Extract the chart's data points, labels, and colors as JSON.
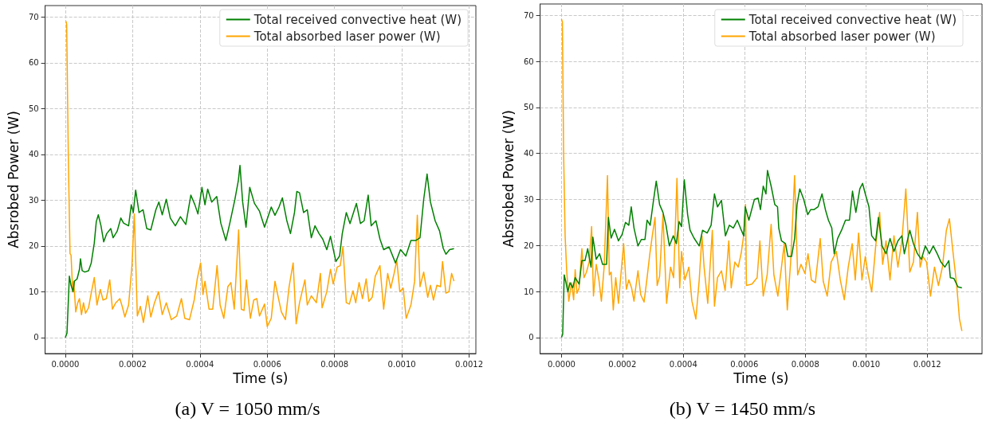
{
  "chart_data": [
    {
      "type": "line",
      "xlabel": "Time (s)",
      "ylabel": "Absrobed Power (W)",
      "annotations": [
        "(a) V = 1050 mm/s"
      ],
      "xlim": [
        -6e-05,
        0.00122
      ],
      "ylim": [
        -3.5,
        72.5
      ],
      "xticks": [
        {
          "value": 0,
          "label": "0.0000"
        },
        {
          "value": 0.0002,
          "label": "0.0002"
        },
        {
          "value": 0.0004,
          "label": "0.0004"
        },
        {
          "value": 0.0006,
          "label": "0.0006"
        },
        {
          "value": 0.0008,
          "label": "0.0008"
        },
        {
          "value": 0.001,
          "label": "0.0010"
        },
        {
          "value": 0.0012,
          "label": "0.0012"
        }
      ],
      "yticks": [
        0,
        10,
        20,
        30,
        40,
        50,
        60,
        70
      ],
      "grid": true,
      "legend": "top right",
      "line_style": "solid",
      "series": [
        {
          "name": "Total received convective heat (W)",
          "color": "#008000",
          "x": [
            0,
            5e-06,
            1.2e-05,
            1.7e-05,
            2.3e-05,
            2.7e-05,
            3.5e-05,
            4.2e-05,
            4.5e-05,
            5e-05,
            5.8e-05,
            6.9e-05,
            7.7e-05,
            8.6e-05,
            9.2e-05,
            9.8e-05,
            0.000106,
            0.000114,
            0.000123,
            0.000135,
            0.000142,
            0.000154,
            0.000165,
            0.000173,
            0.000188,
            0.000196,
            0.000202,
            0.000209,
            0.000219,
            0.000231,
            0.000242,
            0.000254,
            0.000269,
            0.000278,
            0.000288,
            0.0003,
            0.000312,
            0.000327,
            0.000342,
            0.000358,
            0.000373,
            0.000385,
            0.000394,
            0.000406,
            0.000415,
            0.000423,
            0.000435,
            0.00045,
            0.000462,
            0.000477,
            0.000488,
            0.000504,
            0.000514,
            0.000519,
            0.000527,
            0.000537,
            0.000548,
            0.000562,
            0.000577,
            0.000592,
            0.000612,
            0.000623,
            0.000635,
            0.000645,
            0.000658,
            0.000669,
            0.000681,
            0.000688,
            0.000696,
            0.000708,
            0.000719,
            0.000731,
            0.000742,
            0.000754,
            0.000765,
            0.000777,
            0.000788,
            0.000804,
            0.000815,
            0.000823,
            0.000835,
            0.000846,
            0.000865,
            0.000877,
            0.000888,
            0.0009,
            0.000909,
            0.000923,
            0.000935,
            0.000946,
            0.000962,
            0.000981,
            0.000996,
            0.001012,
            0.001027,
            0.001042,
            0.001054,
            0.001065,
            0.001075,
            0.001085,
            0.001099,
            0.001112,
            0.001123,
            0.001131,
            0.001142,
            0.001155
          ],
          "values": [
            0,
            1,
            13.4,
            11.4,
            10,
            12.3,
            12.8,
            14.9,
            17.2,
            14.6,
            14.3,
            14.6,
            16.3,
            20.6,
            25.3,
            26.8,
            24.4,
            20.9,
            22.7,
            23.8,
            21.8,
            23.2,
            26.1,
            25,
            24.4,
            29,
            27.3,
            32.2,
            27.3,
            27.9,
            23.8,
            23.5,
            27.9,
            29.6,
            26.8,
            30.2,
            26.1,
            24.4,
            26.4,
            24.7,
            31.1,
            29,
            27,
            32.8,
            29,
            32.4,
            29.6,
            30.8,
            25,
            21.2,
            24.7,
            30.2,
            34.2,
            37.6,
            29.6,
            24.1,
            32.8,
            29.3,
            27.6,
            24.1,
            28.5,
            26.7,
            28.5,
            30.5,
            25.6,
            22.7,
            27.3,
            31.9,
            31.6,
            27.3,
            27.9,
            21.8,
            24.4,
            22.7,
            21.5,
            19.2,
            22.1,
            16.6,
            17.8,
            22.7,
            27.3,
            24.9,
            29.3,
            24.9,
            25.5,
            31.1,
            24.4,
            25.5,
            21.5,
            19.2,
            19.8,
            16.3,
            19.2,
            17.8,
            21.2,
            21.2,
            21.8,
            30.2,
            35.7,
            29.6,
            25.5,
            23.3,
            19.5,
            18.2,
            19.2,
            19.4
          ]
        },
        {
          "name": "Total absorbed laser power (W)",
          "color": "#ffa500",
          "x": [
            2e-06,
            4e-06,
            9e-06,
            1.4e-05,
            1.7e-05,
            2.2e-05,
            2.5e-05,
            3.1e-05,
            3.7e-05,
            4.2e-05,
            4.8e-05,
            5.4e-05,
            6e-05,
            6.9e-05,
            7.7e-05,
            8.6e-05,
            9.4e-05,
            0.000104,
            0.000112,
            0.000122,
            0.000132,
            0.00014,
            0.00015,
            0.000162,
            0.000169,
            0.000177,
            0.000188,
            0.000198,
            0.000205,
            0.000214,
            0.000223,
            0.000232,
            0.000245,
            0.000254,
            0.000265,
            0.000277,
            0.000288,
            0.0003,
            0.000315,
            0.000331,
            0.000345,
            0.000355,
            0.000369,
            0.000383,
            0.000392,
            0.000402,
            0.000409,
            0.000415,
            0.000427,
            0.000438,
            0.000451,
            0.00046,
            0.000471,
            0.000483,
            0.000492,
            0.000502,
            0.000515,
            0.000523,
            0.000531,
            0.000538,
            0.00055,
            0.00056,
            0.000569,
            0.000577,
            0.000592,
            0.0006,
            0.000612,
            0.000623,
            0.000631,
            0.000642,
            0.000654,
            0.000665,
            0.000677,
            0.000686,
            0.000696,
            0.000712,
            0.000719,
            0.000731,
            0.000746,
            0.000758,
            0.000763,
            0.000777,
            0.000788,
            0.000796,
            0.000808,
            0.000817,
            0.000825,
            0.000835,
            0.000844,
            0.000855,
            0.000863,
            0.000873,
            0.000883,
            0.000894,
            0.000902,
            0.000912,
            0.000921,
            0.000935,
            0.000946,
            0.000958,
            0.000967,
            0.000977,
            0.000985,
            0.000994,
            0.001004,
            0.001013,
            0.001027,
            0.001038,
            0.001046,
            0.001054,
            0.001065,
            0.001077,
            0.001085,
            0.001094,
            0.001104,
            0.001115,
            0.001121,
            0.001131,
            0.00114,
            0.001148,
            0.001155
          ],
          "values": [
            69.1,
            68.4,
            38.9,
            18.3,
            18,
            10,
            12.3,
            5.6,
            7.6,
            8.5,
            5,
            7.6,
            5.3,
            6.5,
            9.7,
            13.1,
            7.1,
            10.5,
            8.2,
            8.5,
            12.6,
            6.2,
            7.6,
            8.5,
            6.8,
            4.5,
            7.1,
            15.7,
            27,
            4.7,
            6.8,
            3.3,
            9.1,
            4.5,
            7.6,
            10,
            5,
            7.6,
            3.9,
            4.7,
            8.5,
            4.2,
            3.9,
            8.2,
            12.8,
            16.3,
            9.4,
            12.3,
            6.2,
            6.2,
            15.7,
            7.1,
            4.2,
            11.1,
            12,
            6.2,
            23.5,
            6.2,
            5.9,
            12.6,
            4.2,
            8.2,
            8.5,
            4.7,
            7.3,
            2.4,
            4.2,
            12.3,
            9.4,
            5.6,
            3.9,
            11.1,
            16.3,
            3,
            7.6,
            12.6,
            7.1,
            9.1,
            7.6,
            14,
            6.5,
            10,
            14.9,
            11.7,
            15.4,
            15.7,
            19.8,
            7.6,
            7.3,
            10.2,
            7.6,
            12,
            8.5,
            12.8,
            7.9,
            8.8,
            13.4,
            15.7,
            6.2,
            14,
            10.8,
            14,
            16.9,
            10,
            10.8,
            4.2,
            7.1,
            12.3,
            26.7,
            11.1,
            14.3,
            8.8,
            11.4,
            8.2,
            11.4,
            11.1,
            16.6,
            9.7,
            10,
            14,
            12.3
          ]
        }
      ]
    },
    {
      "type": "line",
      "xlabel": "Time (s)",
      "ylabel": "Absrobed Power (W)",
      "annotations": [
        "(b) V = 1450 mm/s"
      ],
      "xlim": [
        -7e-05,
        0.00138
      ],
      "ylim": [
        -3.5,
        72.5
      ],
      "xticks": [
        {
          "value": 0,
          "label": "0.0000"
        },
        {
          "value": 0.0002,
          "label": "0.0002"
        },
        {
          "value": 0.0004,
          "label": "0.0004"
        },
        {
          "value": 0.0006,
          "label": "0.0006"
        },
        {
          "value": 0.0008,
          "label": "0.0008"
        },
        {
          "value": 0.001,
          "label": "0.0010"
        },
        {
          "value": 0.0012,
          "label": "0.0012"
        }
      ],
      "yticks": [
        0,
        10,
        20,
        30,
        40,
        50,
        60,
        70
      ],
      "grid": true,
      "legend": "top right",
      "line_style": "solid",
      "series": [
        {
          "name": "Total received convective heat (W)",
          "color": "#008000",
          "x": [
            0,
            4e-06,
            9e-06,
            1.5e-05,
            2.1e-05,
            2.8e-05,
            3.7e-05,
            4.5e-05,
            5.8e-05,
            6.7e-05,
            7.7e-05,
            8.6e-05,
            9.7e-05,
            0.000103,
            0.000114,
            0.000125,
            0.000135,
            0.000148,
            0.000154,
            0.000163,
            0.000174,
            0.000187,
            0.000199,
            0.00021,
            0.000221,
            0.000229,
            0.000238,
            0.000251,
            0.000262,
            0.000274,
            0.000281,
            0.000291,
            0.000302,
            0.000311,
            0.000322,
            0.000333,
            0.000343,
            0.000354,
            0.000367,
            0.000377,
            0.000386,
            0.000394,
            0.000403,
            0.000414,
            0.000422,
            0.000435,
            0.000452,
            0.000463,
            0.000478,
            0.000491,
            0.000502,
            0.000512,
            0.000525,
            0.000538,
            0.000551,
            0.000564,
            0.000577,
            0.000589,
            0.000598,
            0.000603,
            0.000615,
            0.000633,
            0.000645,
            0.000653,
            0.000662,
            0.000671,
            0.000676,
            0.000688,
            0.0007,
            0.000709,
            0.000713,
            0.000722,
            0.000735,
            0.000743,
            0.000755,
            0.000765,
            0.000773,
            0.000782,
            0.000795,
            0.000808,
            0.000818,
            0.000829,
            0.000842,
            0.000855,
            0.000866,
            0.000876,
            0.000887,
            0.000895,
            0.000906,
            0.000919,
            0.000932,
            0.000945,
            0.000955,
            0.000966,
            0.000979,
            0.000988,
            0.000997,
            0.001009,
            0.001018,
            0.001031,
            0.00104,
            0.001052,
            0.001065,
            0.001078,
            0.001091,
            0.001104,
            0.001117,
            0.001125,
            0.001143,
            0.001155,
            0.001168,
            0.001181,
            0.001194,
            0.001207,
            0.00122,
            0.001233,
            0.001245,
            0.001258,
            0.001271,
            0.001276,
            0.001288,
            0.001301,
            0.001314
          ],
          "values": [
            0,
            0.7,
            13.6,
            11.9,
            9.9,
            11.9,
            10.8,
            13,
            11.6,
            16.7,
            16.7,
            19.3,
            15.3,
            21.8,
            17,
            18.2,
            15.9,
            15.9,
            26.1,
            21.6,
            23.5,
            21,
            22.4,
            25,
            24.4,
            28.4,
            23.8,
            19.9,
            21.3,
            21.3,
            25.5,
            24.4,
            29.8,
            34,
            28.9,
            27.2,
            24.4,
            19.9,
            22.1,
            20.4,
            25.2,
            24.1,
            34.3,
            26.7,
            23.3,
            21.6,
            19.9,
            23.3,
            22.7,
            24.4,
            31.2,
            28.4,
            29.8,
            22.1,
            24.4,
            23.8,
            25.5,
            23.5,
            22.1,
            28.4,
            25.5,
            30,
            30.3,
            27.8,
            32.9,
            31.2,
            36.3,
            32.9,
            28.9,
            28.4,
            23.8,
            21,
            20.4,
            17.6,
            17.6,
            21.5,
            28.9,
            32.3,
            30,
            26.7,
            27.8,
            27.8,
            28.4,
            31.2,
            27.8,
            25.5,
            23.8,
            18.2,
            21.5,
            23.3,
            25.5,
            25.5,
            31.8,
            27.2,
            32.3,
            33.5,
            31.2,
            28.4,
            22.1,
            21,
            26.1,
            19.9,
            18.2,
            21.5,
            18.7,
            21,
            22.1,
            18.2,
            23.3,
            20.4,
            18.2,
            17,
            19.9,
            18.2,
            19.9,
            18.2,
            16.4,
            15.3,
            16.7,
            13,
            12.8,
            11,
            10.8
          ]
        },
        {
          "name": "Total absorbed laser power (W)",
          "color": "#ffa500",
          "x": [
            0,
            3e-06,
            7e-06,
            1.2e-05,
            1.7e-05,
            2.4e-05,
            3.3e-05,
            4e-05,
            4.5e-05,
            5.1e-05,
            5.8e-05,
            6.7e-05,
            7.4e-05,
            8.2e-05,
            9.1e-05,
            9.9e-05,
            0.000105,
            0.000114,
            0.000123,
            0.000131,
            0.00014,
            0.000151,
            0.000157,
            0.000163,
            0.00017,
            0.000178,
            0.000187,
            0.000195,
            0.000204,
            0.000213,
            0.000221,
            0.00023,
            0.000238,
            0.000251,
            0.00026,
            0.000271,
            0.000281,
            0.00029,
            0.000298,
            0.000307,
            0.000314,
            0.000322,
            0.000333,
            0.000345,
            0.000358,
            0.000368,
            0.000379,
            0.000388,
            0.000394,
            0.000405,
            0.000418,
            0.000428,
            0.000441,
            0.000452,
            0.000461,
            0.000468,
            0.00048,
            0.000495,
            0.000502,
            0.000512,
            0.000525,
            0.000537,
            0.000549,
            0.000557,
            0.000569,
            0.00058,
            0.00059,
            0.000599,
            0.000604,
            0.000607,
            0.000625,
            0.000642,
            0.000651,
            0.000662,
            0.000675,
            0.000688,
            0.000697,
            0.00071,
            0.000722,
            0.000731,
            0.000741,
            0.000752,
            0.000765,
            0.000775,
            0.000786,
            0.000799,
            0.000809,
            0.00082,
            0.000833,
            0.000849,
            0.000859,
            0.000872,
            0.000885,
            0.000902,
            0.000915,
            0.000928,
            0.000941,
            0.000954,
            0.000964,
            0.000975,
            0.000986,
            0.000997,
            0.001005,
            0.001018,
            0.001031,
            0.001044,
            0.001054,
            0.001065,
            0.001078,
            0.001091,
            0.001104,
            0.001117,
            0.00113,
            0.001143,
            0.001155,
            0.001168,
            0.001177,
            0.001186,
            0.001198,
            0.001211,
            0.001224,
            0.001237,
            0.00125,
            0.001263,
            0.001273,
            0.001284,
            0.001297,
            0.001306,
            0.001314
          ],
          "values": [
            69.2,
            68.6,
            40.3,
            22.1,
            14.7,
            7.9,
            11.9,
            8.2,
            14.7,
            9.6,
            10.8,
            19.3,
            13,
            14.2,
            16.4,
            24.1,
            9,
            15.9,
            12.5,
            7.9,
            15.3,
            35.2,
            13.6,
            14.2,
            6,
            13,
            7.4,
            13.6,
            20.4,
            10.5,
            12.5,
            10.8,
            7.9,
            14.5,
            9.3,
            7.7,
            13,
            18.2,
            22.1,
            26.1,
            11.3,
            13.3,
            26.7,
            7.4,
            15.3,
            13,
            34.6,
            10.8,
            18.7,
            12.5,
            15.3,
            7.9,
            4,
            12.5,
            22.1,
            15.3,
            7.4,
            23.3,
            6.8,
            13,
            14.5,
            10.2,
            21,
            10.8,
            16.4,
            15.3,
            18.4,
            22.7,
            28.9,
            11.3,
            11.6,
            13,
            21,
            9,
            13.6,
            24.6,
            13.6,
            9,
            15.3,
            20.4,
            6,
            16.4,
            35.2,
            13.6,
            15.9,
            13.9,
            18.2,
            12.5,
            11.9,
            21.5,
            12.2,
            9,
            16.4,
            18.7,
            12.5,
            8.2,
            15.3,
            20.4,
            12.5,
            22.7,
            12.5,
            17.6,
            14.2,
            9.9,
            19.8,
            27.2,
            15.9,
            21,
            12.5,
            22.1,
            15.3,
            21,
            32.3,
            14.2,
            16.4,
            27.2,
            15.3,
            17.6,
            16.4,
            9,
            15.3,
            11.3,
            15.3,
            23.3,
            25.8,
            19,
            11.3,
            4,
            1.4
          ]
        }
      ]
    }
  ]
}
